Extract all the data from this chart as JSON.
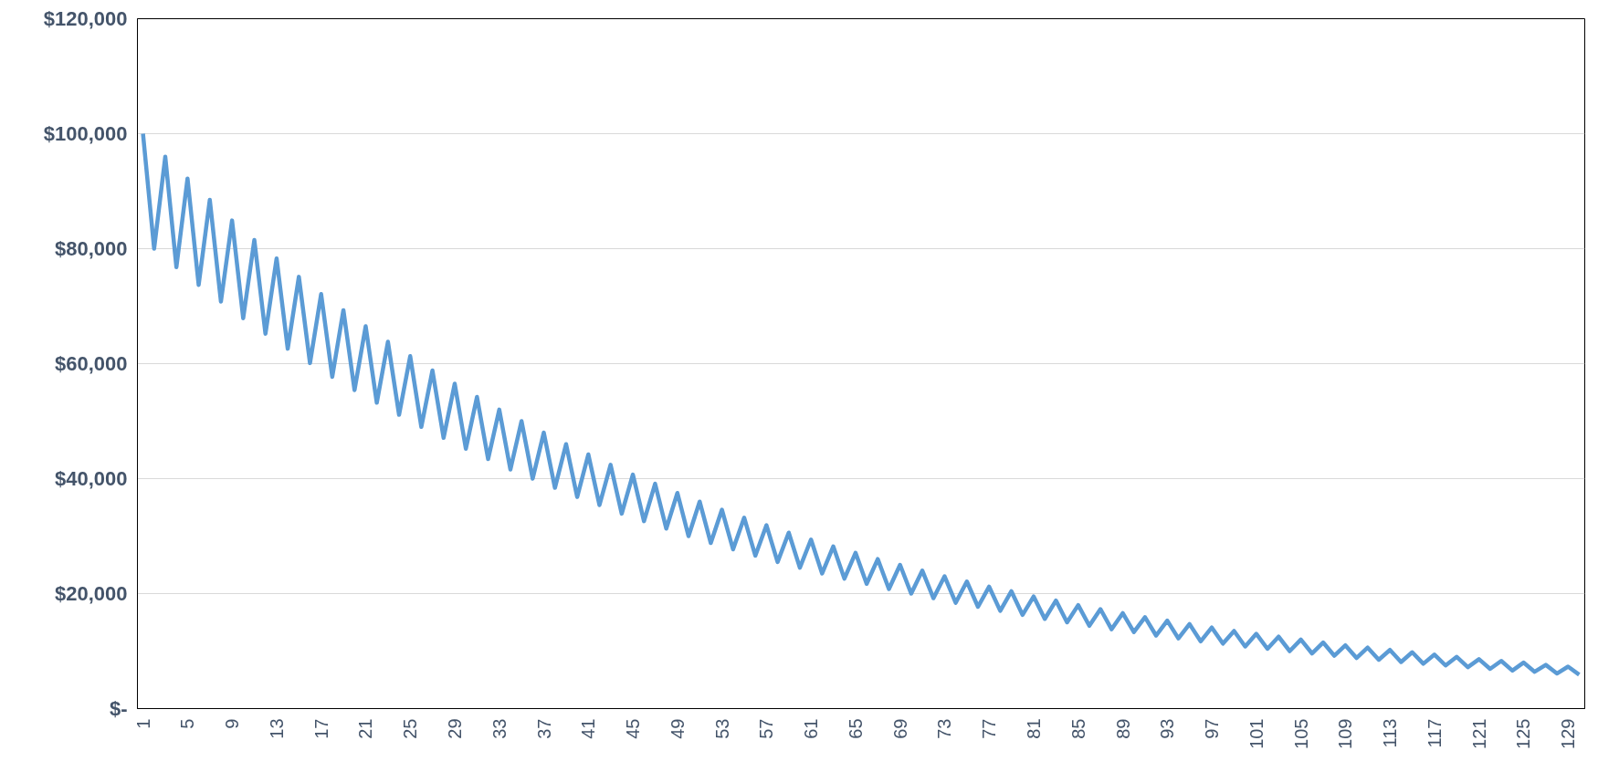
{
  "chart_data": {
    "type": "line",
    "categories": [
      "1",
      null,
      null,
      null,
      "5",
      null,
      null,
      null,
      "9",
      null,
      null,
      null,
      "13",
      null,
      null,
      null,
      "17",
      null,
      null,
      null,
      "21",
      null,
      null,
      null,
      "25",
      null,
      null,
      null,
      "29",
      null,
      null,
      null,
      "33",
      null,
      null,
      null,
      "37",
      null,
      null,
      null,
      "41",
      null,
      null,
      null,
      "45",
      null,
      null,
      null,
      "49",
      null,
      null,
      null,
      "53",
      null,
      null,
      null,
      "57",
      null,
      null,
      null,
      "61",
      null,
      null,
      null,
      "65",
      null,
      null,
      null,
      "69",
      null,
      null,
      null,
      "73",
      null,
      null,
      null,
      "77",
      null,
      null,
      null,
      "81",
      null,
      null,
      null,
      "85",
      null,
      null,
      null,
      "89",
      null,
      null,
      null,
      "93",
      null,
      null,
      null,
      "97",
      null,
      null,
      null,
      "101",
      null,
      null,
      null,
      "105",
      null,
      null,
      null,
      "109",
      null,
      null,
      null,
      "113",
      null,
      null,
      null,
      "117",
      null,
      null,
      null,
      "121",
      null,
      null,
      null,
      "125",
      null,
      null,
      null,
      "129",
      null
    ],
    "series": [
      {
        "color": "#5b9bd5",
        "values": [
          100000,
          80000,
          96000,
          76800,
          92200,
          73700,
          88500,
          70800,
          84900,
          67900,
          81500,
          65200,
          78300,
          62600,
          75100,
          60100,
          72100,
          57700,
          69300,
          55400,
          66500,
          53200,
          63800,
          51100,
          61300,
          49000,
          58800,
          47100,
          56500,
          45200,
          54200,
          43400,
          52000,
          41600,
          50000,
          40000,
          48000,
          38400,
          46000,
          36800,
          44200,
          35400,
          42400,
          33900,
          40700,
          32600,
          39100,
          31300,
          37500,
          30000,
          36000,
          28800,
          34600,
          27700,
          33200,
          26600,
          31900,
          25500,
          30600,
          24500,
          29400,
          23500,
          28200,
          22600,
          27100,
          21700,
          26000,
          20800,
          25000,
          20000,
          24000,
          19200,
          23000,
          18400,
          22100,
          17700,
          21200,
          17000,
          20400,
          16300,
          19500,
          15600,
          18800,
          15000,
          18000,
          14400,
          17300,
          13800,
          16600,
          13300,
          15900,
          12700,
          15300,
          12200,
          14700,
          11700,
          14100,
          11300,
          13500,
          10800,
          13000,
          10400,
          12500,
          10000,
          12000,
          9600,
          11500,
          9200,
          11000,
          8800,
          10600,
          8500,
          10200,
          8100,
          9800,
          7800,
          9400,
          7500,
          9000,
          7200,
          8600,
          6900,
          8300,
          6600,
          8000,
          6400,
          7600,
          6100,
          7300,
          5900
        ]
      }
    ],
    "ylim": [
      0,
      120000
    ],
    "yticks": [
      {
        "value": 0,
        "label": "$-"
      },
      {
        "value": 20000,
        "label": "$20,000"
      },
      {
        "value": 40000,
        "label": "$40,000"
      },
      {
        "value": 60000,
        "label": "$60,000"
      },
      {
        "value": 80000,
        "label": "$80,000"
      },
      {
        "value": 100000,
        "label": "$100,000"
      },
      {
        "value": 120000,
        "label": "$120,000"
      }
    ],
    "grid": "y",
    "marker": "none",
    "line_style": "solid"
  }
}
